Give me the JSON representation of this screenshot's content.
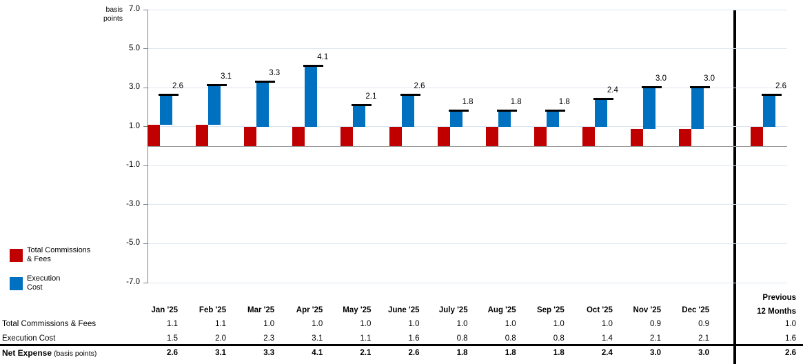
{
  "axis": {
    "title": "basis\npoints",
    "yticks": [
      7,
      5,
      3,
      1,
      -1,
      -3,
      -5,
      -7
    ]
  },
  "chart_data": {
    "type": "bar",
    "subtype": "stacked-waterfall-with-total-caps",
    "title": "",
    "ylabel": "basis points",
    "ylim": [
      -7,
      7
    ],
    "grid": true,
    "legend_position": "left-bottom",
    "categories": [
      "Jan '25",
      "Feb '25",
      "Mar '25",
      "Apr '25",
      "May '25",
      "June '25",
      "July '25",
      "Aug '25",
      "Sep '25",
      "Oct '25",
      "Nov '25",
      "Dec '25",
      "Previous 12 Months"
    ],
    "series": [
      {
        "name": "Total Commissions & Fees",
        "color": "#C00000",
        "values": [
          1.1,
          1.1,
          1.0,
          1.0,
          1.0,
          1.0,
          1.0,
          1.0,
          1.0,
          1.0,
          0.9,
          0.9,
          1.0
        ]
      },
      {
        "name": "Execution Cost",
        "color": "#0070C0",
        "values": [
          1.5,
          2.0,
          2.3,
          3.1,
          1.1,
          1.6,
          0.8,
          0.8,
          0.8,
          1.4,
          2.1,
          2.1,
          1.6
        ]
      }
    ],
    "totals": {
      "name": "Net Expense (basis points)",
      "values": [
        2.6,
        3.1,
        3.3,
        4.1,
        2.1,
        2.6,
        1.8,
        1.8,
        1.8,
        2.4,
        3.0,
        3.0,
        2.6
      ]
    }
  },
  "legend": {
    "items": [
      {
        "label": "Total Commissions\n& Fees",
        "color": "#C00000"
      },
      {
        "label": "Execution\nCost",
        "color": "#0070C0"
      }
    ]
  },
  "table": {
    "col_headers": [
      "Jan '25",
      "Feb '25",
      "Mar '25",
      "Apr '25",
      "May '25",
      "June '25",
      "July '25",
      "Aug '25",
      "Sep '25",
      "Oct '25",
      "Nov '25",
      "Dec '25"
    ],
    "prev_header": "Previous\n12 Months",
    "rows": [
      {
        "label": "Total Commissions & Fees",
        "bold": false,
        "values": [
          1.1,
          1.1,
          1.0,
          1.0,
          1.0,
          1.0,
          1.0,
          1.0,
          1.0,
          1.0,
          0.9,
          0.9,
          1.0
        ]
      },
      {
        "label": "Execution Cost",
        "bold": false,
        "values": [
          1.5,
          2.0,
          2.3,
          3.1,
          1.1,
          1.6,
          0.8,
          0.8,
          0.8,
          1.4,
          2.1,
          2.1,
          1.6
        ]
      },
      {
        "label": "Net Expense",
        "label_suffix": " (basis points)",
        "bold": true,
        "values": [
          2.6,
          3.1,
          3.3,
          4.1,
          2.1,
          2.6,
          1.8,
          1.8,
          1.8,
          2.4,
          3.0,
          3.0,
          2.6
        ]
      }
    ]
  },
  "colors": {
    "red": "#C00000",
    "blue": "#0070C0",
    "gridline": "#DCE6F1",
    "zero_line": "#9B9B9B",
    "axis": "#808080",
    "cap": "#000000",
    "separator": "#000000"
  }
}
